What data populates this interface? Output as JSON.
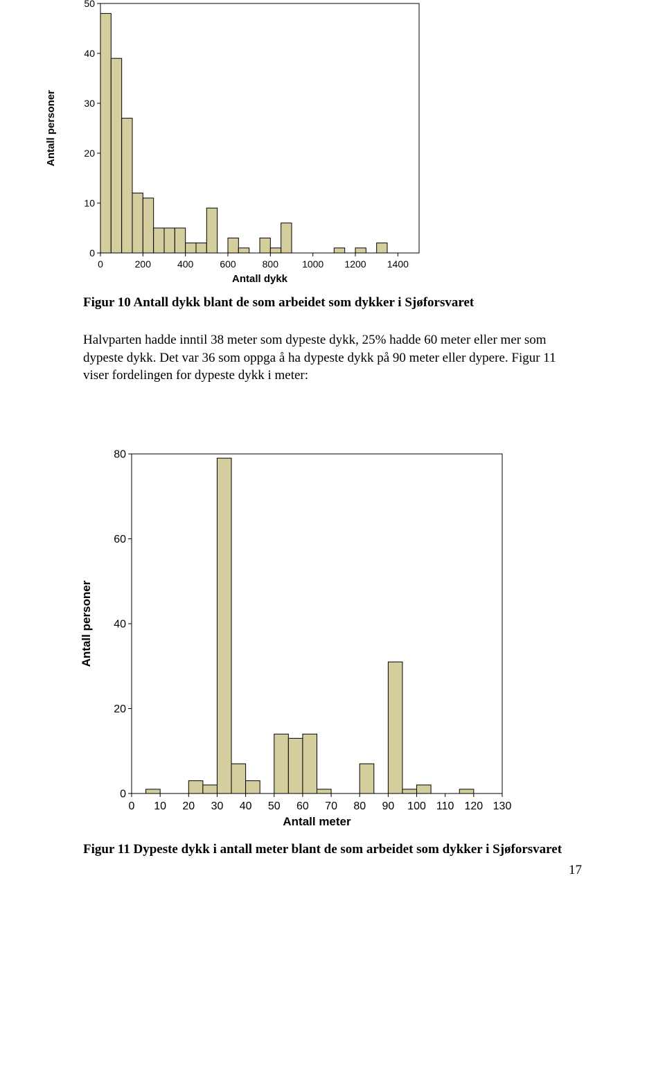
{
  "chart1": {
    "type": "histogram",
    "bar_color": "#d4ce9e",
    "bar_stroke": "#000000",
    "background_color": "#ffffff",
    "plot_border_color": "#000000",
    "ylabel": "Antall personer",
    "xlabel": "Antall dykk",
    "label_fontsize": 15,
    "tick_fontsize": 14,
    "ylim": [
      0,
      50
    ],
    "ytick_step": 10,
    "yticks": [
      0,
      10,
      20,
      30,
      40,
      50
    ],
    "xlim": [
      0,
      1500
    ],
    "xticks": [
      0,
      200,
      400,
      600,
      800,
      1000,
      1200,
      1400
    ],
    "bin_width": 50,
    "bins": [
      0,
      50,
      100,
      150,
      200,
      250,
      300,
      350,
      400,
      450,
      500,
      550,
      600,
      650,
      700,
      750,
      800,
      850,
      900,
      950,
      1000,
      1050,
      1100,
      1150,
      1200,
      1250,
      1300,
      1350,
      1400,
      1450
    ],
    "values": [
      48,
      39,
      27,
      12,
      11,
      5,
      5,
      5,
      2,
      2,
      9,
      0,
      3,
      1,
      0,
      3,
      1,
      6,
      0,
      0,
      0,
      0,
      1,
      0,
      1,
      0,
      2,
      0,
      0,
      0
    ]
  },
  "caption1": "Figur 10 Antall dykk blant de som arbeidet som dykker i Sjøforsvaret",
  "paragraph": "Halvparten hadde inntil 38 meter som dypeste dykk, 25% hadde 60 meter eller mer som dypeste dykk. Det var 36 som oppga å ha dypeste dykk på 90 meter eller dypere. Figur 11 viser fordelingen for dypeste dykk i meter:",
  "chart2": {
    "type": "histogram",
    "bar_color": "#d4ce9e",
    "bar_stroke": "#000000",
    "background_color": "#ffffff",
    "plot_border_color": "#000000",
    "ylabel": "Antall personer",
    "xlabel": "Antall meter",
    "label_fontsize": 17,
    "tick_fontsize": 16,
    "ylim": [
      0,
      80
    ],
    "ytick_step": 20,
    "yticks": [
      0,
      20,
      40,
      60,
      80
    ],
    "xlim": [
      0,
      130
    ],
    "xticks": [
      0,
      10,
      20,
      30,
      40,
      50,
      60,
      70,
      80,
      90,
      100,
      110,
      120,
      130
    ],
    "bin_width": 5,
    "bins": [
      0,
      5,
      10,
      15,
      20,
      25,
      30,
      35,
      40,
      45,
      50,
      55,
      60,
      65,
      70,
      75,
      80,
      85,
      90,
      95,
      100,
      105,
      110,
      115,
      120,
      125
    ],
    "values": [
      0,
      1,
      0,
      0,
      3,
      2,
      79,
      7,
      3,
      0,
      14,
      13,
      14,
      1,
      0,
      0,
      7,
      0,
      31,
      1,
      2,
      0,
      0,
      1,
      0,
      0
    ]
  },
  "caption2": "Figur 11 Dypeste dykk i antall meter blant de som arbeidet som dykker i Sjøforsvaret",
  "page_number": "17"
}
